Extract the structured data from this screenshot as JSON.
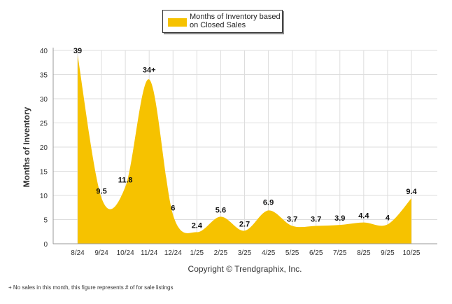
{
  "legend": {
    "label": "Months of Inventory based on Closed Sales"
  },
  "copyright": "Copyright © Trendgraphix, Inc.",
  "footnote": "+  No sales in this month, this figure represents # of for sale listings",
  "colors": {
    "fill": "#F6C200",
    "grid": "#DDDDDD",
    "axis": "#999999"
  },
  "chart_data": {
    "type": "area",
    "ylabel": "Months of Inventory",
    "ylim": [
      0,
      40
    ],
    "yticks": [
      0,
      5,
      10,
      15,
      20,
      25,
      30,
      35,
      40
    ],
    "categories": [
      "8/24",
      "9/24",
      "10/24",
      "11/24",
      "12/24",
      "1/25",
      "2/25",
      "3/25",
      "4/25",
      "5/25",
      "6/25",
      "7/25",
      "8/25",
      "9/25",
      "10/25"
    ],
    "values": [
      39,
      9.5,
      11.8,
      34,
      6,
      2.4,
      5.6,
      2.7,
      6.9,
      3.7,
      3.7,
      3.9,
      4.4,
      4,
      9.4
    ],
    "data_labels": [
      "39",
      "9.5",
      "11.8",
      "34+",
      "6",
      "2.4",
      "5.6",
      "2.7",
      "6.9",
      "3.7",
      "3.7",
      "3.9",
      "4.4",
      "4",
      "9.4"
    ],
    "legend_position": "top-center",
    "grid": true
  }
}
